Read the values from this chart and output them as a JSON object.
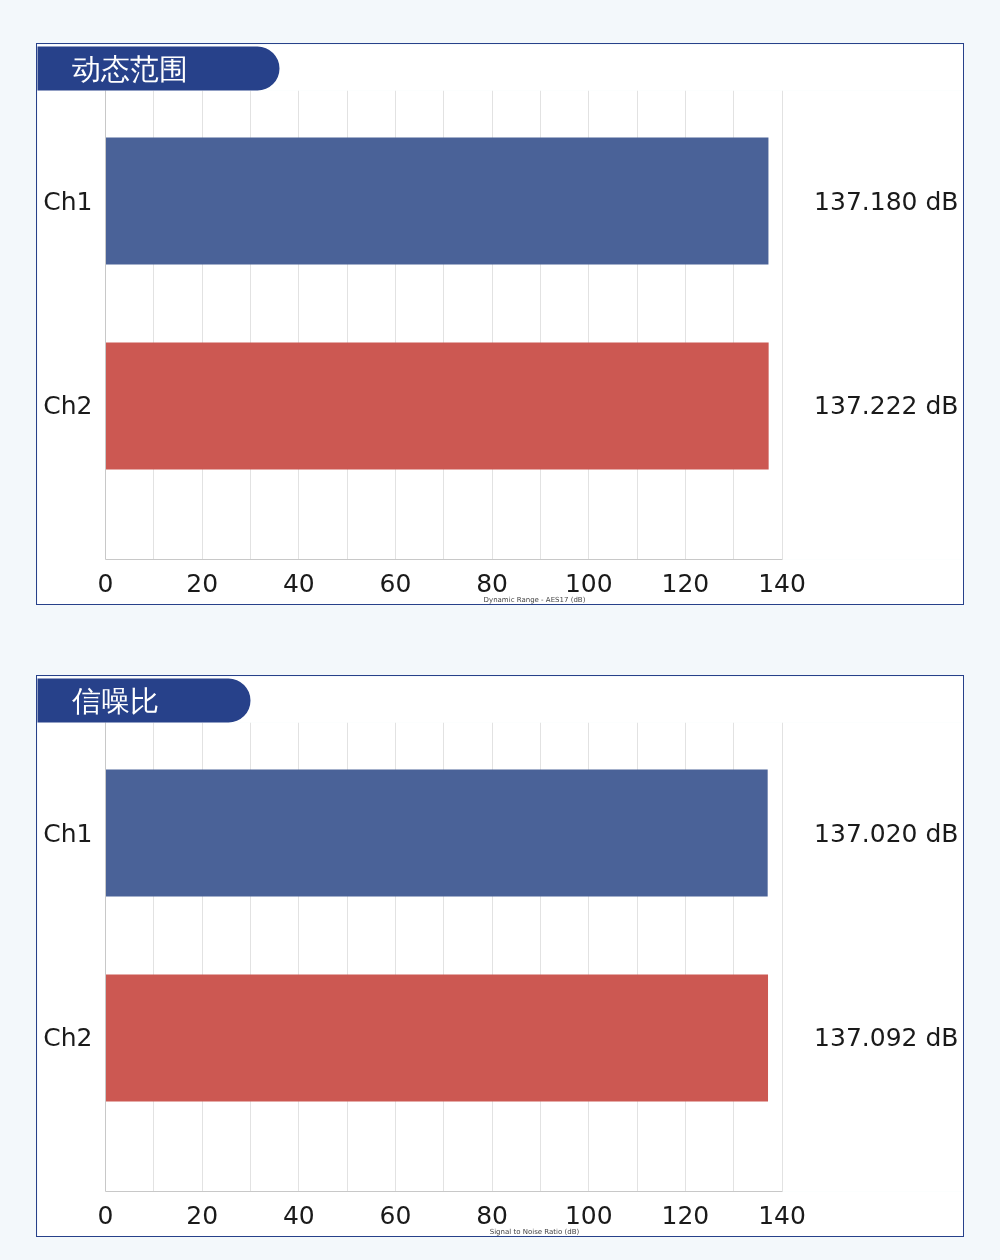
{
  "chart_data": [
    {
      "type": "bar",
      "orientation": "horizontal",
      "title": "动态范围",
      "xlabel": "Dynamic Range - AES17 (dB)",
      "categories": [
        "Ch1",
        "Ch2"
      ],
      "values": [
        137.18,
        137.222
      ],
      "colors": [
        "#4a6298",
        "#cc5852"
      ],
      "value_labels": [
        "137.180 dB",
        "137.222 dB"
      ],
      "xlim": [
        0,
        140
      ],
      "xticks": [
        0,
        {
          "value": 10,
          "label": null
        },
        20,
        {
          "value": 30,
          "label": null
        },
        40,
        {
          "value": 50,
          "label": null
        },
        60,
        {
          "value": 70,
          "label": null
        },
        80,
        {
          "value": 90,
          "label": null
        },
        100,
        {
          "value": 110,
          "label": null
        },
        120,
        {
          "value": 130,
          "label": null
        },
        140
      ],
      "grid": "x"
    },
    {
      "type": "bar",
      "orientation": "horizontal",
      "title": "信噪比",
      "xlabel": "Signal to Noise Ratio (dB)",
      "categories": [
        "Ch1",
        "Ch2"
      ],
      "values": [
        137.02,
        137.092
      ],
      "colors": [
        "#4a6298",
        "#cc5852"
      ],
      "value_labels": [
        "137.020 dB",
        "137.092 dB"
      ],
      "xlim": [
        0,
        140
      ],
      "xticks": [
        0,
        {
          "value": 10,
          "label": null
        },
        20,
        {
          "value": 30,
          "label": null
        },
        40,
        {
          "value": 50,
          "label": null
        },
        60,
        {
          "value": 70,
          "label": null
        },
        80,
        {
          "value": 90,
          "label": null
        },
        100,
        {
          "value": 110,
          "label": null
        },
        120,
        {
          "value": 130,
          "label": null
        },
        140
      ],
      "grid": "x"
    }
  ]
}
